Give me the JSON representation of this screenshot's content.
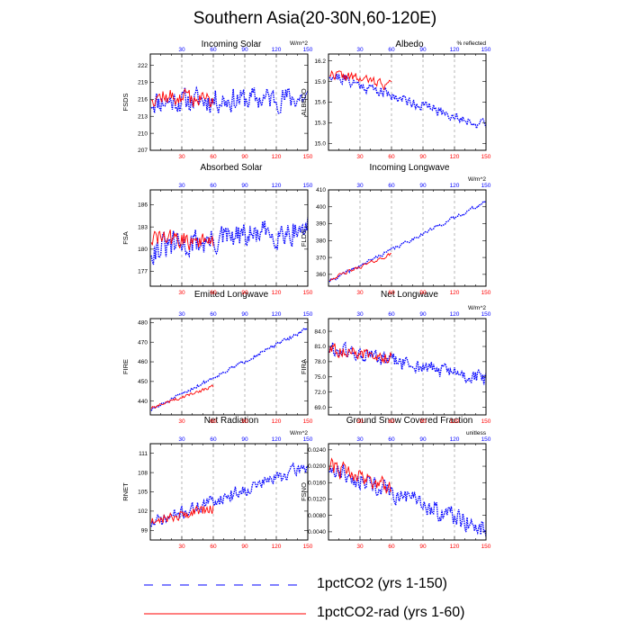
{
  "title": "Southern Asia(20-30N,60-120E)",
  "colors": {
    "model_a": "#0000ff",
    "model_b": "#ff0000",
    "top_tick_labels": "#0000ff",
    "bottom_tick_labels": "#ff0000"
  },
  "legend": [
    {
      "label": "1pctCO2 (yrs 1-150)",
      "color": "#0000ff",
      "style": "dashed"
    },
    {
      "label": "1pctCO2-rad (yrs 1-60)",
      "color": "#ff0000",
      "style": "solid"
    }
  ],
  "chart_data": [
    {
      "type": "line",
      "title": "Incoming Solar",
      "ylabel": "FSDS",
      "units": "W/m^2",
      "xlim": [
        0,
        150
      ],
      "ylim": [
        207,
        224
      ],
      "yticks": [
        "207",
        "210",
        "213",
        "216",
        "219",
        "222"
      ],
      "top_xticks": [
        "30",
        "60",
        "90",
        "120",
        "150"
      ],
      "bottom_xticks": [
        "30",
        "60",
        "90",
        "120",
        "150"
      ],
      "grid": "dashed-vertical-at-30-60-90-120",
      "series": [
        {
          "x_start": 1,
          "x_end": 150,
          "base_start": 215.6,
          "base_end": 216.3,
          "noise": 3.0,
          "seed": 11
        },
        {
          "x_start": 1,
          "x_end": 60,
          "base_start": 216.5,
          "base_end": 216.0,
          "noise": 2.2,
          "seed": 12
        }
      ]
    },
    {
      "type": "line",
      "title": "Albedo",
      "ylabel": "ALBEDO",
      "units": "% reflected",
      "xlim": [
        0,
        150
      ],
      "ylim": [
        14.9,
        16.3
      ],
      "yticks": [
        "15.0",
        "15.3",
        "15.6",
        "15.9",
        "16.2"
      ],
      "top_xticks": [
        "30",
        "60",
        "90",
        "120",
        "150"
      ],
      "bottom_xticks": [
        "30",
        "60",
        "90",
        "120",
        "150"
      ],
      "grid": "dashed-vertical-at-30-60-90-120",
      "series": [
        {
          "x_start": 1,
          "x_end": 150,
          "base_start": 16.0,
          "base_end": 15.25,
          "noise": 0.11,
          "seed": 21
        },
        {
          "x_start": 1,
          "x_end": 60,
          "base_start": 16.02,
          "base_end": 15.85,
          "noise": 0.1,
          "seed": 22
        }
      ]
    },
    {
      "type": "line",
      "title": "Absorbed Solar",
      "ylabel": "FSA",
      "units": "",
      "xlim": [
        0,
        150
      ],
      "ylim": [
        175,
        188
      ],
      "yticks": [
        "177",
        "180",
        "183",
        "186"
      ],
      "top_xticks": [
        "30",
        "60",
        "90",
        "120",
        "150"
      ],
      "bottom_xticks": [
        "30",
        "60",
        "90",
        "120",
        "150"
      ],
      "grid": "dashed-vertical-at-30-60-90-120",
      "series": [
        {
          "x_start": 1,
          "x_end": 150,
          "base_start": 180.0,
          "base_end": 182.8,
          "noise": 2.6,
          "seed": 31
        },
        {
          "x_start": 1,
          "x_end": 60,
          "base_start": 181.5,
          "base_end": 181.0,
          "noise": 1.8,
          "seed": 32
        }
      ]
    },
    {
      "type": "line",
      "title": "Incoming Longwave",
      "ylabel": "FLDS",
      "units": "W/m^2",
      "xlim": [
        0,
        150
      ],
      "ylim": [
        353,
        410
      ],
      "yticks": [
        "360",
        "370",
        "380",
        "390",
        "400",
        "410"
      ],
      "top_xticks": [
        "30",
        "60",
        "90",
        "120",
        "150"
      ],
      "bottom_xticks": [
        "30",
        "60",
        "90",
        "120",
        "150"
      ],
      "grid": "dashed-vertical-at-30-60-90-120",
      "series": [
        {
          "x_start": 1,
          "x_end": 150,
          "base_start": 356.0,
          "base_end": 403.0,
          "noise": 1.4,
          "seed": 41
        },
        {
          "x_start": 1,
          "x_end": 60,
          "base_start": 357.0,
          "base_end": 372.0,
          "noise": 1.4,
          "seed": 42
        }
      ]
    },
    {
      "type": "line",
      "title": "Emitted Longwave",
      "ylabel": "FIRE",
      "units": "",
      "xlim": [
        0,
        150
      ],
      "ylim": [
        433,
        482
      ],
      "yticks": [
        "440",
        "450",
        "460",
        "470",
        "480"
      ],
      "top_xticks": [
        "30",
        "60",
        "90",
        "120",
        "150"
      ],
      "bottom_xticks": [
        "30",
        "60",
        "90",
        "120",
        "150"
      ],
      "grid": "dashed-vertical-at-30-60-90-120",
      "series": [
        {
          "x_start": 1,
          "x_end": 150,
          "base_start": 435.5,
          "base_end": 477.0,
          "noise": 1.2,
          "seed": 51
        },
        {
          "x_start": 1,
          "x_end": 60,
          "base_start": 436.5,
          "base_end": 447.5,
          "noise": 1.2,
          "seed": 52
        }
      ]
    },
    {
      "type": "line",
      "title": "Net Longwave",
      "ylabel": "FIRA",
      "units": "W/m^2",
      "xlim": [
        0,
        150
      ],
      "ylim": [
        67.5,
        86.5
      ],
      "yticks": [
        "69.0",
        "72.0",
        "75.0",
        "78.0",
        "81.0",
        "84.0"
      ],
      "top_xticks": [
        "30",
        "60",
        "90",
        "120",
        "150"
      ],
      "bottom_xticks": [
        "30",
        "60",
        "90",
        "120",
        "150"
      ],
      "grid": "dashed-vertical-at-30-60-90-120",
      "series": [
        {
          "x_start": 1,
          "x_end": 150,
          "base_start": 80.5,
          "base_end": 74.5,
          "noise": 2.2,
          "seed": 61
        },
        {
          "x_start": 1,
          "x_end": 60,
          "base_start": 80.3,
          "base_end": 78.8,
          "noise": 1.8,
          "seed": 62
        }
      ]
    },
    {
      "type": "line",
      "title": "Net Radiation",
      "ylabel": "RNET",
      "units": "W/m^2",
      "xlim": [
        0,
        150
      ],
      "ylim": [
        97.5,
        112.5
      ],
      "yticks": [
        "99",
        "102",
        "105",
        "108",
        "111"
      ],
      "top_xticks": [
        "30",
        "60",
        "90",
        "120",
        "150"
      ],
      "bottom_xticks": [
        "30",
        "60",
        "90",
        "120",
        "150"
      ],
      "grid": "dashed-vertical-at-30-60-90-120",
      "series": [
        {
          "x_start": 1,
          "x_end": 150,
          "base_start": 100.0,
          "base_end": 109.0,
          "noise": 1.4,
          "seed": 71
        },
        {
          "x_start": 1,
          "x_end": 60,
          "base_start": 100.5,
          "base_end": 102.5,
          "noise": 1.2,
          "seed": 72
        }
      ]
    },
    {
      "type": "line",
      "title": "Ground Snow Covered Fraction",
      "ylabel": "FSNO",
      "units": "unitless",
      "xlim": [
        0,
        150
      ],
      "ylim": [
        0.002,
        0.0255
      ],
      "yticks": [
        "0.0040",
        "0.0080",
        "0.0120",
        "0.0160",
        "0.0200",
        "0.0240"
      ],
      "top_xticks": [
        "30",
        "60",
        "90",
        "120",
        "150"
      ],
      "bottom_xticks": [
        "30",
        "60",
        "90",
        "120",
        "150"
      ],
      "grid": "dashed-vertical-at-30-60-90-120",
      "series": [
        {
          "x_start": 1,
          "x_end": 150,
          "base_start": 0.0195,
          "base_end": 0.0045,
          "noise": 0.0032,
          "seed": 81
        },
        {
          "x_start": 1,
          "x_end": 60,
          "base_start": 0.02,
          "base_end": 0.015,
          "noise": 0.003,
          "seed": 82
        }
      ]
    }
  ]
}
